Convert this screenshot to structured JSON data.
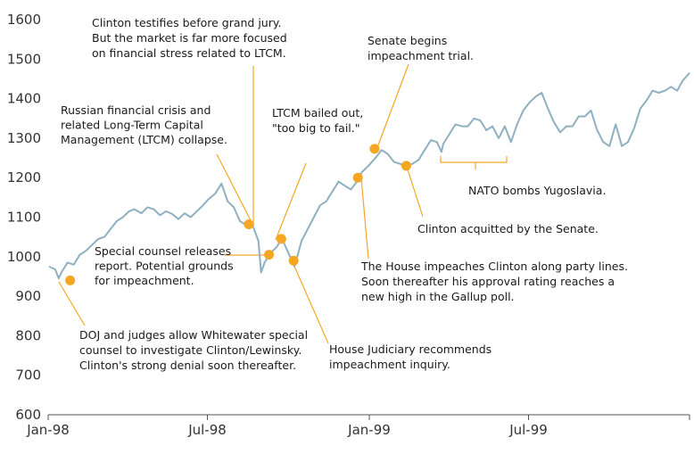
{
  "chart_data": {
    "type": "line",
    "title": "",
    "xlabel": "",
    "ylabel": "",
    "ylim": [
      600,
      1600
    ],
    "y_ticks": [
      600,
      700,
      800,
      900,
      1000,
      1100,
      1200,
      1300,
      1400,
      1500,
      1600
    ],
    "x_ticks": [
      {
        "label": "Jan-98",
        "x": "1998-01-01"
      },
      {
        "label": "Jul-98",
        "x": "1998-07-01"
      },
      {
        "label": "Jan-99",
        "x": "1999-01-01"
      },
      {
        "label": "Jul-99",
        "x": "1999-07-01"
      }
    ],
    "xlim": [
      "1998-01-01",
      "1999-12-31"
    ],
    "grid": false,
    "line_color": "#8fb0c0",
    "marker_color": "#f5a623",
    "series": [
      {
        "x": [
          "1998-01-02",
          "1998-01-09",
          "1998-01-13",
          "1998-01-16",
          "1998-01-23",
          "1998-01-30",
          "1998-02-06",
          "1998-02-13",
          "1998-02-20",
          "1998-02-27",
          "1998-03-06",
          "1998-03-13",
          "1998-03-20",
          "1998-03-27",
          "1998-04-03",
          "1998-04-09",
          "1998-04-17",
          "1998-04-24",
          "1998-05-01",
          "1998-05-08",
          "1998-05-15",
          "1998-05-22",
          "1998-05-29",
          "1998-06-05",
          "1998-06-12",
          "1998-06-19",
          "1998-06-26",
          "1998-07-02",
          "1998-07-10",
          "1998-07-17",
          "1998-07-24",
          "1998-07-31",
          "1998-08-07",
          "1998-08-14",
          "1998-08-21",
          "1998-08-28",
          "1998-08-31",
          "1998-09-04",
          "1998-09-11",
          "1998-09-18",
          "1998-09-23",
          "1998-09-25",
          "1998-10-02",
          "1998-10-08",
          "1998-10-16",
          "1998-10-23",
          "1998-10-30",
          "1998-11-06",
          "1998-11-13",
          "1998-11-20",
          "1998-11-27",
          "1998-12-04",
          "1998-12-11",
          "1998-12-18",
          "1998-12-19",
          "1998-12-24",
          "1998-12-31",
          "1999-01-08",
          "1999-01-15",
          "1999-01-22",
          "1999-01-29",
          "1999-02-05",
          "1999-02-12",
          "1999-02-19",
          "1999-02-26",
          "1999-03-05",
          "1999-03-12",
          "1999-03-19",
          "1999-03-24",
          "1999-03-26",
          "1999-04-02",
          "1999-04-09",
          "1999-04-16",
          "1999-04-23",
          "1999-04-30",
          "1999-05-07",
          "1999-05-14",
          "1999-05-21",
          "1999-05-28",
          "1999-06-04",
          "1999-06-11",
          "1999-06-18",
          "1999-06-25",
          "1999-07-02",
          "1999-07-09",
          "1999-07-16",
          "1999-07-23",
          "1999-07-30",
          "1999-08-06",
          "1999-08-13",
          "1999-08-20",
          "1999-08-27",
          "1999-09-03",
          "1999-09-10",
          "1999-09-17",
          "1999-09-24",
          "1999-10-01",
          "1999-10-08",
          "1999-10-15",
          "1999-10-22",
          "1999-10-29",
          "1999-11-05",
          "1999-11-12",
          "1999-11-19",
          "1999-11-26",
          "1999-12-03",
          "1999-12-10",
          "1999-12-17",
          "1999-12-23",
          "1999-12-31"
        ],
        "y": [
          975,
          968,
          945,
          960,
          985,
          980,
          1005,
          1015,
          1030,
          1045,
          1050,
          1070,
          1090,
          1100,
          1115,
          1120,
          1110,
          1125,
          1120,
          1105,
          1115,
          1108,
          1095,
          1110,
          1100,
          1115,
          1130,
          1145,
          1160,
          1185,
          1140,
          1125,
          1090,
          1080,
          1082,
          1040,
          960,
          985,
          1010,
          1025,
          1045,
          1040,
          1005,
          975,
          1040,
          1070,
          1100,
          1130,
          1140,
          1165,
          1190,
          1180,
          1170,
          1190,
          1200,
          1215,
          1230,
          1250,
          1270,
          1260,
          1240,
          1235,
          1230,
          1235,
          1245,
          1270,
          1295,
          1290,
          1265,
          1285,
          1310,
          1335,
          1330,
          1330,
          1350,
          1345,
          1320,
          1330,
          1300,
          1330,
          1290,
          1335,
          1370,
          1390,
          1405,
          1415,
          1375,
          1340,
          1315,
          1330,
          1330,
          1355,
          1355,
          1370,
          1320,
          1290,
          1280,
          1335,
          1280,
          1290,
          1325,
          1375,
          1395,
          1420,
          1415,
          1420,
          1430,
          1420,
          1445,
          1465
        ]
      }
    ],
    "events": [
      {
        "date": "1998-01-26",
        "value": 940
      },
      {
        "date": "1998-08-17",
        "value": 1082
      },
      {
        "date": "1998-09-09",
        "value": 1005
      },
      {
        "date": "1998-09-23",
        "value": 1045
      },
      {
        "date": "1998-10-07",
        "value": 990
      },
      {
        "date": "1998-12-19",
        "value": 1200
      },
      {
        "date": "1999-01-07",
        "value": 1273
      },
      {
        "date": "1999-02-12",
        "value": 1230
      }
    ],
    "annotations": [
      {
        "id": "doj",
        "lines": [
          "DOJ and judges allow Whitewater special",
          "counsel to investigate Clinton/Lewinsky.",
          "Clinton's strong denial soon thereafter."
        ]
      },
      {
        "id": "russia",
        "lines": [
          "Russian financial crisis and",
          "related Long-Term Capital",
          "Management (LTCM) collapse."
        ]
      },
      {
        "id": "grandjury",
        "lines": [
          "Clinton testifies before grand jury.",
          "But the market is far more focused",
          "on financial stress related to LTCM."
        ]
      },
      {
        "id": "starr",
        "lines": [
          "Special counsel releases",
          "report. Potential grounds",
          "for impeachment."
        ]
      },
      {
        "id": "ltcm",
        "lines": [
          "LTCM bailed out,",
          "\"too big to fail.\""
        ]
      },
      {
        "id": "judiciary",
        "lines": [
          "House Judiciary recommends",
          "impeachment inquiry."
        ]
      },
      {
        "id": "house",
        "lines": [
          "The House impeaches Clinton along party lines.",
          "Soon thereafter his approval rating reaches a",
          "new high in the Gallup poll."
        ]
      },
      {
        "id": "senate",
        "lines": [
          "Senate begins",
          "impeachment trial."
        ]
      },
      {
        "id": "acquit",
        "lines": [
          "Clinton acquitted by the Senate."
        ]
      },
      {
        "id": "nato",
        "lines": [
          "NATO bombs Yugoslavia."
        ]
      }
    ]
  }
}
